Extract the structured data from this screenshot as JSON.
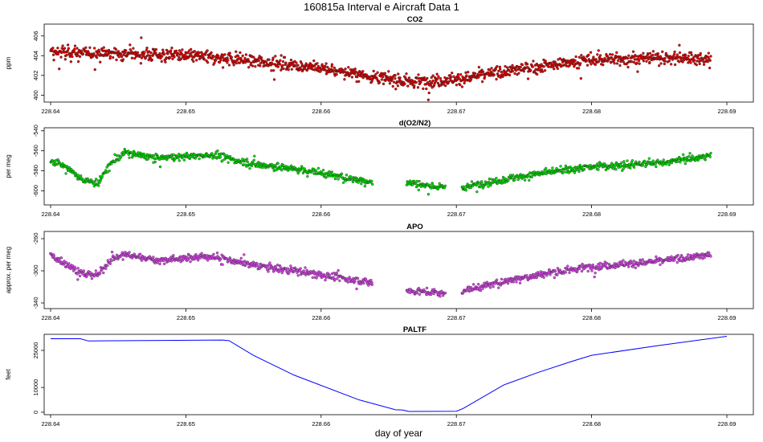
{
  "figure_title": "160815a   Interval e Aircraft Data 1",
  "chart_data": [
    {
      "type": "scatter",
      "title": "CO2",
      "ylabel": "ppm",
      "xlabel": "",
      "color": "#e00000",
      "xlim": [
        228.6395,
        228.6915
      ],
      "ylim": [
        399.3,
        407.2
      ],
      "yticks": [
        400,
        402,
        404,
        406
      ],
      "xticks": [
        228.64,
        228.65,
        228.66,
        228.67,
        228.68,
        228.69
      ],
      "xticklabels": [
        "228.64",
        "228.65",
        "228.66",
        "228.67",
        "228.68",
        "228.69"
      ],
      "x_range": [
        228.64,
        228.6888
      ],
      "trend": [
        [
          228.64,
          404.3
        ],
        [
          228.645,
          404.2
        ],
        [
          228.65,
          404.0
        ],
        [
          228.655,
          403.5
        ],
        [
          228.66,
          402.7
        ],
        [
          228.665,
          401.6
        ],
        [
          228.667,
          401.3
        ],
        [
          228.67,
          401.6
        ],
        [
          228.675,
          402.7
        ],
        [
          228.68,
          403.6
        ],
        [
          228.685,
          403.8
        ],
        [
          228.6888,
          403.7
        ]
      ],
      "noise": 0.8,
      "n_points": 1400,
      "gaps": []
    },
    {
      "type": "scatter",
      "title": "d(O2/N2)",
      "ylabel": "per meg",
      "xlabel": "",
      "color": "#00e000",
      "xlim": [
        228.6395,
        228.6915
      ],
      "ylim": [
        -614,
        -537
      ],
      "yticks": [
        -600,
        -580,
        -560,
        -540
      ],
      "xticks": [
        228.64,
        228.65,
        228.66,
        228.67,
        228.68,
        228.69
      ],
      "xticklabels": [
        "228.64",
        "228.65",
        "228.66",
        "228.67",
        "228.68",
        "228.69"
      ],
      "x_range": [
        228.64,
        228.6888
      ],
      "trend": [
        [
          228.64,
          -570
        ],
        [
          228.641,
          -575
        ],
        [
          228.6425,
          -590
        ],
        [
          228.6435,
          -592
        ],
        [
          228.6445,
          -572
        ],
        [
          228.6455,
          -562
        ],
        [
          228.648,
          -567
        ],
        [
          228.652,
          -564
        ],
        [
          228.655,
          -573
        ],
        [
          228.658,
          -578
        ],
        [
          228.66,
          -582
        ],
        [
          228.6638,
          -592
        ],
        [
          228.6665,
          -592
        ],
        [
          228.669,
          -597
        ],
        [
          228.6705,
          -597
        ],
        [
          228.673,
          -590
        ],
        [
          228.676,
          -583
        ],
        [
          228.68,
          -576
        ],
        [
          228.685,
          -572
        ],
        [
          228.6888,
          -565
        ]
      ],
      "noise": 4.5,
      "n_points": 1150,
      "gaps": [
        [
          228.6638,
          228.6663
        ],
        [
          228.6692,
          228.6704
        ]
      ]
    },
    {
      "type": "scatter",
      "title": "APO",
      "ylabel": "approx. per meg",
      "xlabel": "",
      "color": "#dd44ee",
      "xlim": [
        228.6395,
        228.6915
      ],
      "ylim": [
        -347,
        -251
      ],
      "yticks": [
        -340,
        -300,
        -260
      ],
      "xticks": [
        228.64,
        228.65,
        228.66,
        228.67,
        228.68,
        228.69
      ],
      "xticklabels": [
        "228.64",
        "228.65",
        "228.66",
        "228.67",
        "228.68",
        "228.69"
      ],
      "x_range": [
        228.64,
        228.6888
      ],
      "trend": [
        [
          228.64,
          -280
        ],
        [
          228.641,
          -290
        ],
        [
          228.6425,
          -305
        ],
        [
          228.6435,
          -305
        ],
        [
          228.6445,
          -285
        ],
        [
          228.6455,
          -280
        ],
        [
          228.648,
          -287
        ],
        [
          228.652,
          -282
        ],
        [
          228.655,
          -293
        ],
        [
          228.658,
          -300
        ],
        [
          228.66,
          -305
        ],
        [
          228.6638,
          -315
        ],
        [
          228.6665,
          -325
        ],
        [
          228.669,
          -328
        ],
        [
          228.6705,
          -325
        ],
        [
          228.673,
          -315
        ],
        [
          228.676,
          -305
        ],
        [
          228.68,
          -295
        ],
        [
          228.685,
          -288
        ],
        [
          228.6888,
          -280
        ]
      ],
      "noise": 5.5,
      "n_points": 1150,
      "gaps": [
        [
          228.6638,
          228.6663
        ],
        [
          228.6692,
          228.6704
        ]
      ]
    },
    {
      "type": "line",
      "title": "PALTF",
      "ylabel": "feet",
      "xlabel": "day of year",
      "color": "#0000ff",
      "xlim": [
        228.6395,
        228.6915
      ],
      "ylim": [
        -1000,
        31500
      ],
      "yticks": [
        0,
        10000,
        25000
      ],
      "xticks": [
        228.64,
        228.65,
        228.66,
        228.67,
        228.68,
        228.69
      ],
      "xticklabels": [
        "228.64",
        "228.65",
        "228.66",
        "228.67",
        "228.68",
        "228.69"
      ],
      "x": [
        228.64,
        228.6422,
        228.6428,
        228.6527,
        228.6532,
        228.655,
        228.658,
        228.6628,
        228.6655,
        228.666,
        228.6665,
        228.67,
        228.6705,
        228.6735,
        228.676,
        228.6785,
        228.68,
        228.685,
        228.69
      ],
      "y": [
        29700,
        29700,
        28800,
        29200,
        28900,
        23000,
        15000,
        5000,
        1000,
        900,
        300,
        400,
        1500,
        11000,
        16000,
        20500,
        23000,
        27000,
        30700
      ]
    }
  ]
}
